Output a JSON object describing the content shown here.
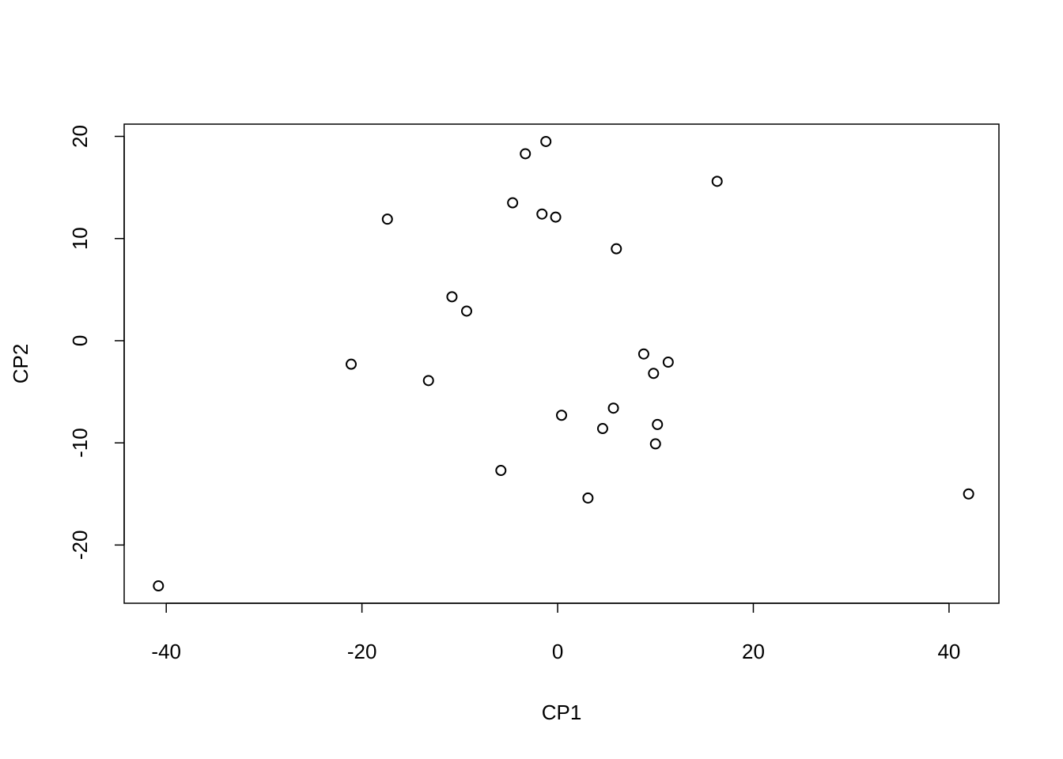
{
  "chart_data": {
    "type": "scatter",
    "title": "",
    "xlabel": "CP1",
    "ylabel": "CP2",
    "xlim": [
      -44.3,
      45.1
    ],
    "ylim": [
      -25.7,
      21.2
    ],
    "xticks": [
      -40,
      -20,
      0,
      20,
      40
    ],
    "yticks": [
      -20,
      -10,
      0,
      10,
      20
    ],
    "grid": false,
    "legend": "none",
    "marker": "open-circle",
    "series": [
      {
        "points": [
          {
            "x": -40.8,
            "y": -24.0
          },
          {
            "x": -21.1,
            "y": -2.3
          },
          {
            "x": -17.4,
            "y": 11.9
          },
          {
            "x": -13.2,
            "y": -3.9
          },
          {
            "x": -10.8,
            "y": 4.3
          },
          {
            "x": -9.3,
            "y": 2.9
          },
          {
            "x": -5.8,
            "y": -12.7
          },
          {
            "x": -4.6,
            "y": 13.5
          },
          {
            "x": -3.3,
            "y": 18.3
          },
          {
            "x": -1.6,
            "y": 12.4
          },
          {
            "x": -1.2,
            "y": 19.5
          },
          {
            "x": -0.2,
            "y": 12.1
          },
          {
            "x": 0.4,
            "y": -7.3
          },
          {
            "x": 3.1,
            "y": -15.4
          },
          {
            "x": 4.6,
            "y": -8.6
          },
          {
            "x": 5.7,
            "y": -6.6
          },
          {
            "x": 6.0,
            "y": 9.0
          },
          {
            "x": 8.8,
            "y": -1.3
          },
          {
            "x": 9.8,
            "y": -3.2
          },
          {
            "x": 10.0,
            "y": -10.1
          },
          {
            "x": 10.2,
            "y": -8.2
          },
          {
            "x": 11.3,
            "y": -2.1
          },
          {
            "x": 16.3,
            "y": 15.6
          },
          {
            "x": 42.0,
            "y": -15.0
          }
        ]
      }
    ]
  }
}
